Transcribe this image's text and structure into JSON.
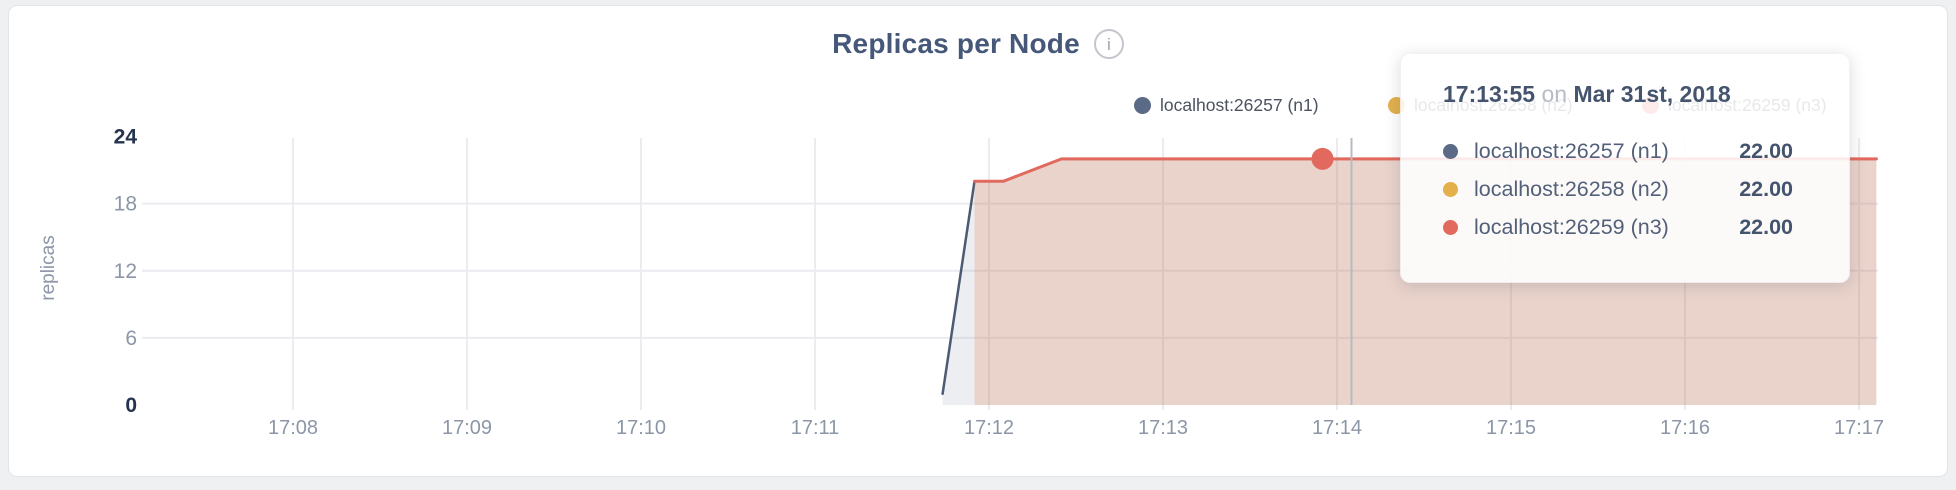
{
  "card": {
    "title": "Replicas per Node",
    "info_icon": "i"
  },
  "colors": {
    "n1": "#5b6a87",
    "n2": "#e3b04b",
    "n3": "#e2695d",
    "grid": "#ececf0",
    "guideline": "#b7bbc1",
    "axis_dark": "#25334f",
    "axis_gray": "#8c96a7"
  },
  "legend": {
    "items": [
      {
        "label": "localhost:26257 (n1)",
        "color": "#5b6a87"
      },
      {
        "label": "localhost:26258 (n2)",
        "color": "#e3b04b"
      },
      {
        "label": "localhost:26259 (n3)",
        "color": "#e2695d"
      }
    ]
  },
  "tooltip": {
    "time": "17:13:55",
    "conj": "on",
    "date": "Mar 31st, 2018",
    "rows": [
      {
        "label": "localhost:26257 (n1)",
        "value": "22.00",
        "color": "#5b6a87"
      },
      {
        "label": "localhost:26258 (n2)",
        "value": "22.00",
        "color": "#e3b04b"
      },
      {
        "label": "localhost:26259 (n3)",
        "value": "22.00",
        "color": "#e2695d"
      }
    ]
  },
  "chart_data": {
    "type": "area",
    "title": "Replicas per Node",
    "xlabel": "",
    "ylabel": "replicas",
    "ylim": [
      0,
      24
    ],
    "y_ticks": [
      0,
      6,
      12,
      18,
      24
    ],
    "x_ticks": [
      "17:08",
      "17:09",
      "17:10",
      "17:11",
      "17:12",
      "17:13",
      "17:14",
      "17:15",
      "17:16",
      "17:17"
    ],
    "grid": true,
    "legend_position": "top-right",
    "series": [
      {
        "name": "localhost:26257 (n1)",
        "color": "#4c5a72",
        "fill_opacity": 0.1,
        "points": [
          [
            "17:11:44",
            1
          ],
          [
            "17:11:55",
            20
          ],
          [
            "17:12:05",
            20
          ],
          [
            "17:12:25",
            22
          ],
          [
            "17:17:06",
            22
          ]
        ]
      },
      {
        "name": "localhost:26258 (n2)",
        "color": "#e3b04b",
        "fill_opacity": 0.1,
        "points": [
          [
            "17:11:55",
            20
          ],
          [
            "17:12:05",
            20
          ],
          [
            "17:12:25",
            22
          ],
          [
            "17:17:06",
            22
          ]
        ]
      },
      {
        "name": "localhost:26259 (n3)",
        "color": "#e2695d",
        "fill_opacity": 0.16,
        "points": [
          [
            "17:11:55",
            20
          ],
          [
            "17:12:05",
            20
          ],
          [
            "17:12:25",
            22
          ],
          [
            "17:17:06",
            22
          ]
        ]
      }
    ],
    "highlight": {
      "series": "localhost:26259 (n3)",
      "time": "17:13:55",
      "value": 22
    },
    "cursor_time": "17:14:05"
  }
}
